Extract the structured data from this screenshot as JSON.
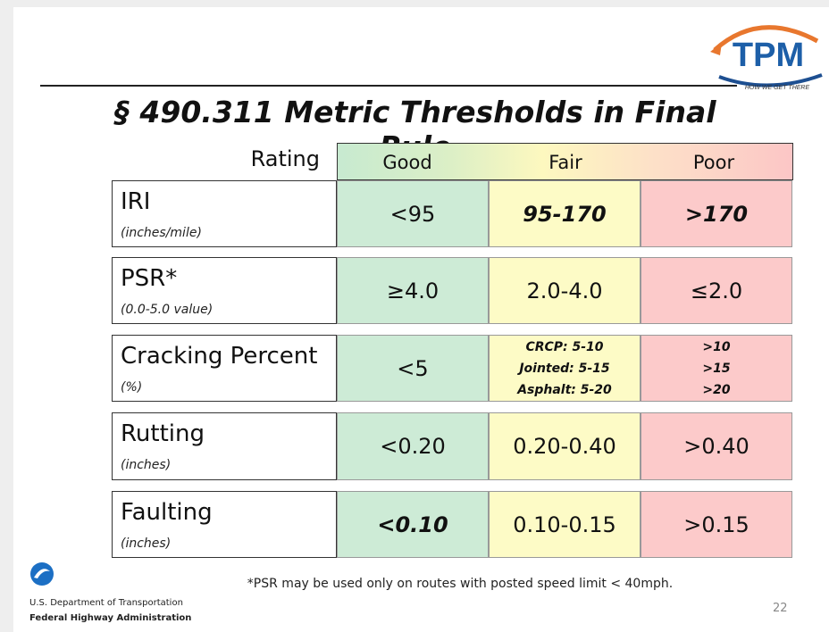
{
  "logo": {
    "text": "TPM",
    "tagline": "HOW WE GET THERE"
  },
  "title": "§ 490.311 Metric Thresholds in Final Rule",
  "table": {
    "header": {
      "rating": "Rating",
      "good": "Good",
      "fair": "Fair",
      "poor": "Poor"
    },
    "rows": [
      {
        "name": "IRI",
        "unit": "(inches/mile)",
        "good": "<95",
        "fair": "95-170",
        "poor": ">170"
      },
      {
        "name": "PSR*",
        "unit": "(0.0-5.0 value)",
        "good": "≥4.0",
        "fair": "2.0-4.0",
        "poor": "≤2.0"
      },
      {
        "name": "Cracking Percent",
        "unit": "(%)",
        "good": "<5",
        "fair": [
          "CRCP: 5-10",
          "Jointed: 5-15",
          "Asphalt: 5-20"
        ],
        "poor": [
          ">10",
          ">15",
          ">20"
        ]
      },
      {
        "name": "Rutting",
        "unit": "(inches)",
        "good": "<0.20",
        "fair": "0.20-0.40",
        "poor": ">0.40"
      },
      {
        "name": "Faulting",
        "unit": "(inches)",
        "good": "<0.10",
        "fair": "0.10-0.15",
        "poor": ">0.15"
      }
    ]
  },
  "footnote": "*PSR may be used only on routes with posted speed limit < 40mph.",
  "footer": {
    "department": "U.S. Department of Transportation",
    "administration": "Federal Highway Administration",
    "page": "22"
  }
}
